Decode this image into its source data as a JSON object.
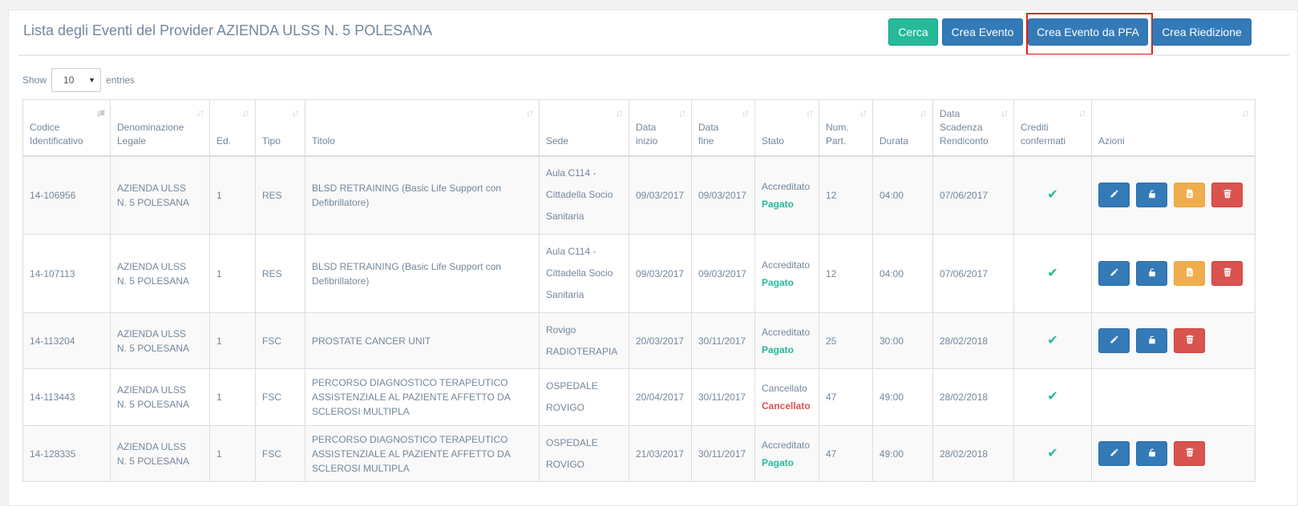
{
  "page": {
    "title": "Lista degli Eventi del Provider AZIENDA ULSS N. 5 POLESANA"
  },
  "toolbar": {
    "cerca": "Cerca",
    "crea_evento": "Crea Evento",
    "crea_evento_pfa": "Crea Evento da PFA",
    "crea_riedizione": "Crea Riedizione"
  },
  "length": {
    "show": "Show",
    "value": "10",
    "entries": "entries"
  },
  "table": {
    "headers": {
      "codice": [
        "Codice",
        "Identificativo"
      ],
      "denominazione": [
        "Denominazione",
        "Legale"
      ],
      "ed": "Ed.",
      "tipo": "Tipo",
      "titolo": "Titolo",
      "sede": "Sede",
      "data_inizio": [
        "Data",
        "inizio"
      ],
      "data_fine": [
        "Data",
        "fine"
      ],
      "stato": "Stato",
      "num_part": [
        "Num.",
        "Part."
      ],
      "durata": "Durata",
      "data_scadenza": [
        "Data",
        "Scadenza",
        "Rendiconto"
      ],
      "crediti": [
        "Crediti",
        "confermati"
      ],
      "azioni": "Azioni"
    },
    "rows": [
      {
        "codice": "14-106956",
        "denominazione": [
          "AZIENDA ULSS",
          "N. 5 POLESANA"
        ],
        "ed": "1",
        "tipo": "RES",
        "titolo": [
          "BLSD RETRAINING (Basic Life Support con",
          "Defibrillatore)"
        ],
        "sede": [
          "Aula C114 -",
          "Cittadella Socio",
          "Sanitaria"
        ],
        "data_inizio": "09/03/2017",
        "data_fine": "09/03/2017",
        "stato": "Accreditato",
        "stato_sub": "Pagato",
        "num_part": "12",
        "durata": "04:00",
        "data_scadenza": "07/06/2017"
      },
      {
        "codice": "14-107113",
        "denominazione": [
          "AZIENDA ULSS",
          "N. 5 POLESANA"
        ],
        "ed": "1",
        "tipo": "RES",
        "titolo": [
          "BLSD RETRAINING (Basic Life Support con",
          "Defibrillatore)"
        ],
        "sede": [
          "Aula C114 -",
          "Cittadella Socio",
          "Sanitaria"
        ],
        "data_inizio": "09/03/2017",
        "data_fine": "09/03/2017",
        "stato": "Accreditato",
        "stato_sub": "Pagato",
        "num_part": "12",
        "durata": "04:00",
        "data_scadenza": "07/06/2017"
      },
      {
        "codice": "14-113204",
        "denominazione": [
          "AZIENDA ULSS",
          "N. 5 POLESANA"
        ],
        "ed": "1",
        "tipo": "FSC",
        "titolo": [
          "PROSTATE CANCER UNIT"
        ],
        "sede": [
          "Rovigo",
          "RADIOTERAPIA"
        ],
        "data_inizio": "20/03/2017",
        "data_fine": "30/11/2017",
        "stato": "Accreditato",
        "stato_sub": "Pagato",
        "num_part": "25",
        "durata": "30:00",
        "data_scadenza": "28/02/2018"
      },
      {
        "codice": "14-113443",
        "denominazione": [
          "AZIENDA ULSS",
          "N. 5 POLESANA"
        ],
        "ed": "1",
        "tipo": "FSC",
        "titolo": [
          "PERCORSO DIAGNOSTICO TERAPEUTICO",
          "ASSISTENZIALE AL PAZIENTE AFFETTO DA",
          "SCLEROSI MULTIPLA"
        ],
        "sede": [
          "OSPEDALE",
          "ROVIGO"
        ],
        "data_inizio": "20/04/2017",
        "data_fine": "30/11/2017",
        "stato": "Cancellato",
        "stato_sub": "Cancellato",
        "num_part": "47",
        "durata": "49:00",
        "data_scadenza": "28/02/2018"
      },
      {
        "codice": "14-128335",
        "denominazione": [
          "AZIENDA ULSS",
          "N. 5 POLESANA"
        ],
        "ed": "1",
        "tipo": "FSC",
        "titolo": [
          "PERCORSO DIAGNOSTICO TERAPEUTICO",
          "ASSISTENZIALE AL PAZIENTE AFFETTO DA",
          "SCLEROSI MULTIPLA"
        ],
        "sede": [
          "OSPEDALE",
          "ROVIGO"
        ],
        "data_inizio": "21/03/2017",
        "data_fine": "30/11/2017",
        "stato": "Accreditato",
        "stato_sub": "Pagato",
        "num_part": "47",
        "durata": "49:00",
        "data_scadenza": "28/02/2018"
      }
    ]
  }
}
